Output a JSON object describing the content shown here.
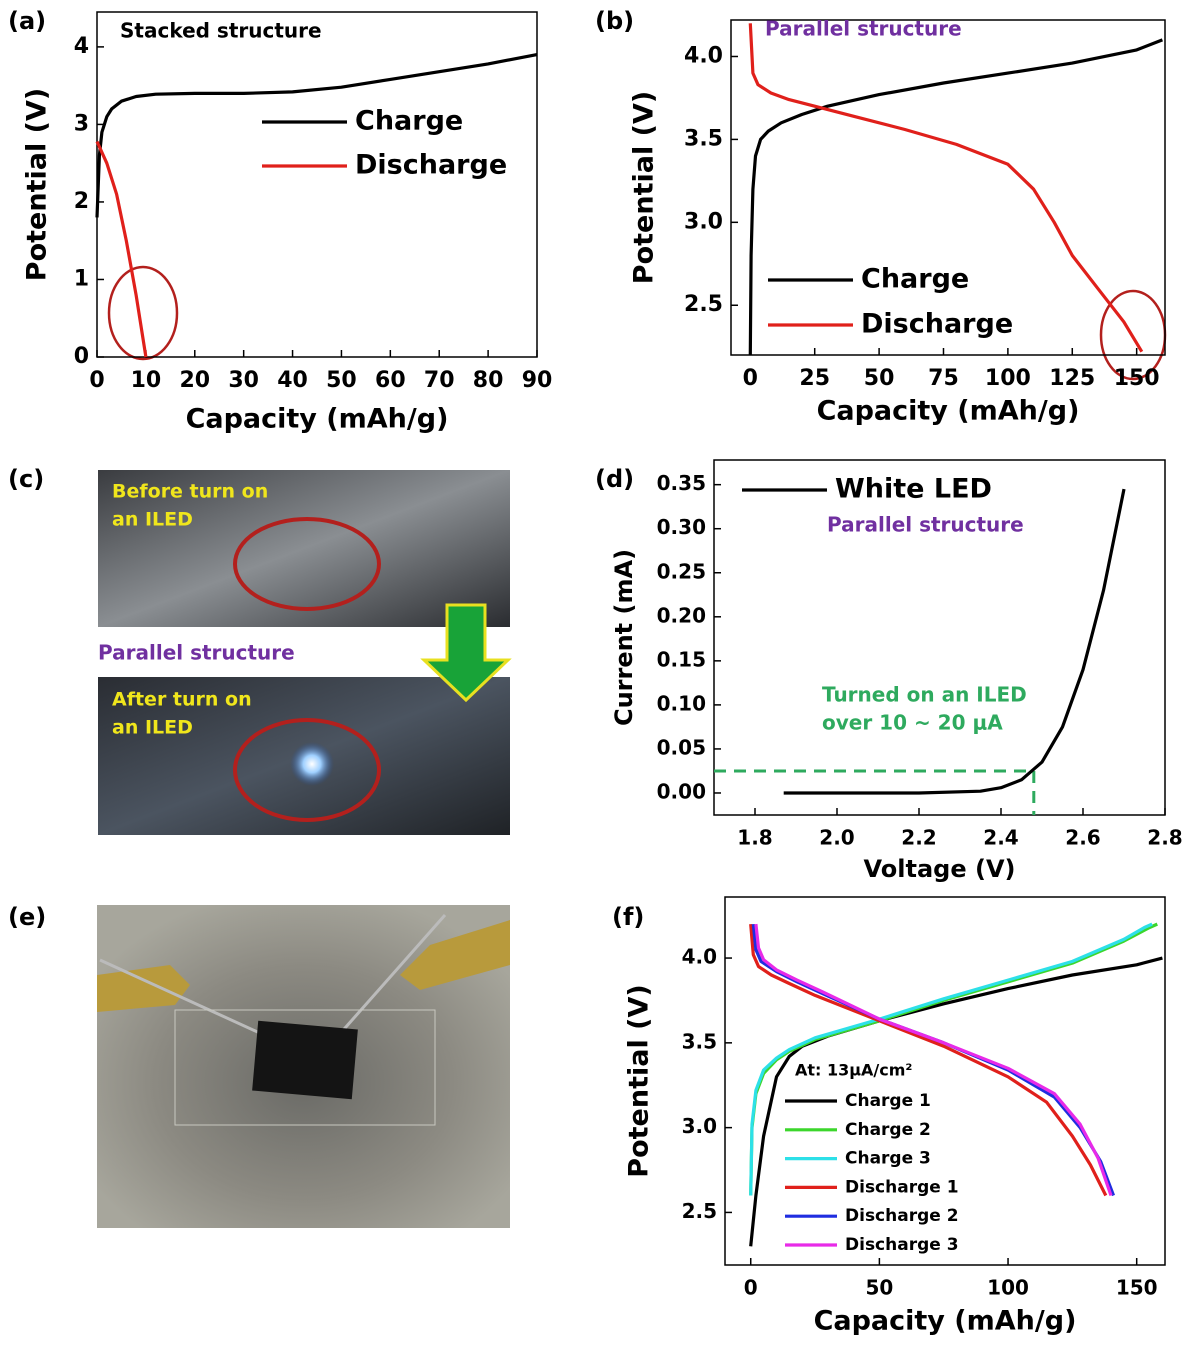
{
  "chart_data": [
    {
      "panel": "(a)",
      "type": "line",
      "annotations": [
        "Stacked structure"
      ],
      "xlabel": "Capacity (mAh/g)",
      "ylabel": "Potential (V)",
      "xlim": [
        0,
        90
      ],
      "ylim": [
        0,
        4.45
      ],
      "xticks": [
        0,
        10,
        20,
        30,
        40,
        50,
        60,
        70,
        80,
        90
      ],
      "yticks": [
        0,
        1,
        2,
        3,
        4
      ],
      "legend": "upper right",
      "series": [
        {
          "name": "Charge",
          "color": "#000000",
          "x": [
            0,
            0.5,
            1,
            2,
            3,
            5,
            8,
            12,
            20,
            30,
            40,
            50,
            60,
            70,
            80,
            90
          ],
          "values": [
            1.8,
            2.6,
            2.9,
            3.1,
            3.2,
            3.3,
            3.36,
            3.39,
            3.4,
            3.4,
            3.42,
            3.48,
            3.58,
            3.68,
            3.78,
            3.9
          ]
        },
        {
          "name": "Discharge",
          "color": "#e0201b",
          "x": [
            0,
            2,
            4,
            6,
            8,
            9,
            10
          ],
          "values": [
            2.78,
            2.5,
            2.1,
            1.5,
            0.8,
            0.4,
            0
          ]
        }
      ]
    },
    {
      "panel": "(b)",
      "type": "line",
      "annotations": [
        "Parallel structure"
      ],
      "xlabel": "Capacity (mAh/g)",
      "ylabel": "Potential (V)",
      "xlim": [
        -7.5,
        161
      ],
      "ylim": [
        2.2,
        4.22
      ],
      "xticks": [
        0,
        25,
        50,
        75,
        100,
        125,
        150
      ],
      "yticks": [
        2.5,
        {
          "value": 3,
          "label": "3.0"
        },
        3.5,
        {
          "value": 4,
          "label": "4.0"
        }
      ],
      "legend": "lower left",
      "series": [
        {
          "name": "Charge",
          "color": "#000000",
          "x": [
            0,
            0.3,
            1,
            2,
            4,
            7,
            12,
            20,
            30,
            50,
            75,
            100,
            125,
            150,
            160
          ],
          "values": [
            2.2,
            2.8,
            3.2,
            3.4,
            3.5,
            3.55,
            3.6,
            3.65,
            3.7,
            3.77,
            3.84,
            3.9,
            3.96,
            4.04,
            4.1
          ]
        },
        {
          "name": "Discharge",
          "color": "#e0201b",
          "x": [
            0,
            1,
            3,
            8,
            15,
            25,
            40,
            60,
            80,
            100,
            110,
            118,
            125,
            135,
            145,
            152
          ],
          "values": [
            4.2,
            3.9,
            3.83,
            3.78,
            3.74,
            3.7,
            3.64,
            3.56,
            3.47,
            3.35,
            3.2,
            3.0,
            2.8,
            2.6,
            2.4,
            2.22
          ]
        }
      ]
    },
    {
      "panel": "(d)",
      "type": "line",
      "annotations": [
        "Parallel structure",
        "Turned on an ILED",
        "over 10 ~ 20 μA"
      ],
      "xlabel": "Voltage (V)",
      "ylabel": "Current (mA)",
      "xlim": [
        1.7,
        2.8
      ],
      "ylim": [
        -0.025,
        0.378
      ],
      "xticks": [
        1.8,
        {
          "value": 2,
          "label": "2.0"
        },
        2.2,
        2.4,
        2.6,
        2.8
      ],
      "yticks": [
        {
          "value": 0,
          "label": "0.00"
        },
        0.05,
        {
          "value": 0.1,
          "label": "0.10"
        },
        0.15,
        {
          "value": 0.2,
          "label": "0.20"
        },
        0.25,
        {
          "value": 0.3,
          "label": "0.30"
        },
        0.35
      ],
      "legend": "upper left",
      "reference": {
        "x": 2.48,
        "y": 0.025,
        "color": "#2eaa5e"
      },
      "series": [
        {
          "name": "White LED",
          "color": "#000000",
          "x": [
            1.87,
            2.0,
            2.2,
            2.35,
            2.4,
            2.45,
            2.5,
            2.55,
            2.6,
            2.65,
            2.7
          ],
          "values": [
            0,
            0,
            0,
            0.002,
            0.006,
            0.015,
            0.035,
            0.075,
            0.14,
            0.23,
            0.345
          ]
        }
      ]
    },
    {
      "panel": "(f)",
      "type": "line",
      "annotations": [
        "At: 13μA/cm²"
      ],
      "xlabel": "Capacity (mAh/g)",
      "ylabel": "Potential (V)",
      "xlim": [
        -10,
        161
      ],
      "ylim": [
        2.19,
        4.36
      ],
      "xticks": [
        0,
        50,
        100,
        150
      ],
      "yticks": [
        2.5,
        {
          "value": 3,
          "label": "3.0"
        },
        3.5,
        {
          "value": 4,
          "label": "4.0"
        }
      ],
      "legend": "lower left",
      "series": [
        {
          "name": "Charge 1",
          "color": "#000000",
          "x": [
            0,
            2,
            5,
            10,
            15,
            20,
            30,
            50,
            75,
            100,
            125,
            150,
            160
          ],
          "values": [
            2.3,
            2.6,
            2.95,
            3.3,
            3.42,
            3.48,
            3.54,
            3.63,
            3.73,
            3.82,
            3.9,
            3.96,
            4.0
          ]
        },
        {
          "name": "Charge 2",
          "color": "#3cd62c",
          "x": [
            0,
            0.5,
            2,
            5,
            10,
            15,
            25,
            50,
            75,
            100,
            125,
            145,
            155,
            158
          ],
          "values": [
            2.6,
            3.0,
            3.2,
            3.32,
            3.4,
            3.45,
            3.52,
            3.63,
            3.75,
            3.86,
            3.97,
            4.1,
            4.18,
            4.2
          ]
        },
        {
          "name": "Charge 3",
          "color": "#2de0e8",
          "x": [
            0,
            0.5,
            2,
            5,
            10,
            15,
            25,
            50,
            75,
            100,
            125,
            145,
            153,
            156
          ],
          "values": [
            2.6,
            3.02,
            3.22,
            3.34,
            3.41,
            3.46,
            3.53,
            3.64,
            3.76,
            3.87,
            3.98,
            4.11,
            4.18,
            4.2
          ]
        },
        {
          "name": "Discharge 1",
          "color": "#e0201b",
          "x": [
            0,
            1,
            3,
            8,
            15,
            25,
            50,
            75,
            100,
            115,
            125,
            132,
            138
          ],
          "values": [
            4.2,
            4.02,
            3.95,
            3.9,
            3.85,
            3.78,
            3.63,
            3.48,
            3.3,
            3.15,
            2.95,
            2.78,
            2.6
          ]
        },
        {
          "name": "Discharge 2",
          "color": "#1f2de0",
          "x": [
            1,
            2,
            4,
            10,
            18,
            28,
            50,
            75,
            100,
            118,
            128,
            136,
            141
          ],
          "values": [
            4.2,
            4.05,
            3.98,
            3.92,
            3.86,
            3.79,
            3.64,
            3.5,
            3.34,
            3.18,
            3.0,
            2.8,
            2.6
          ]
        },
        {
          "name": "Discharge 3",
          "color": "#e82ae8",
          "x": [
            2,
            3,
            5,
            10,
            18,
            28,
            50,
            75,
            100,
            118,
            128,
            135,
            140
          ],
          "values": [
            4.2,
            4.06,
            3.99,
            3.93,
            3.87,
            3.8,
            3.64,
            3.5,
            3.35,
            3.2,
            3.02,
            2.82,
            2.6
          ]
        }
      ]
    }
  ],
  "photos": [
    {
      "panel": "(c)",
      "captions": [
        "Before turn on",
        "an ILED",
        "Parallel structure",
        "After turn on",
        "an ILED"
      ]
    },
    {
      "panel": "(e)"
    }
  ]
}
